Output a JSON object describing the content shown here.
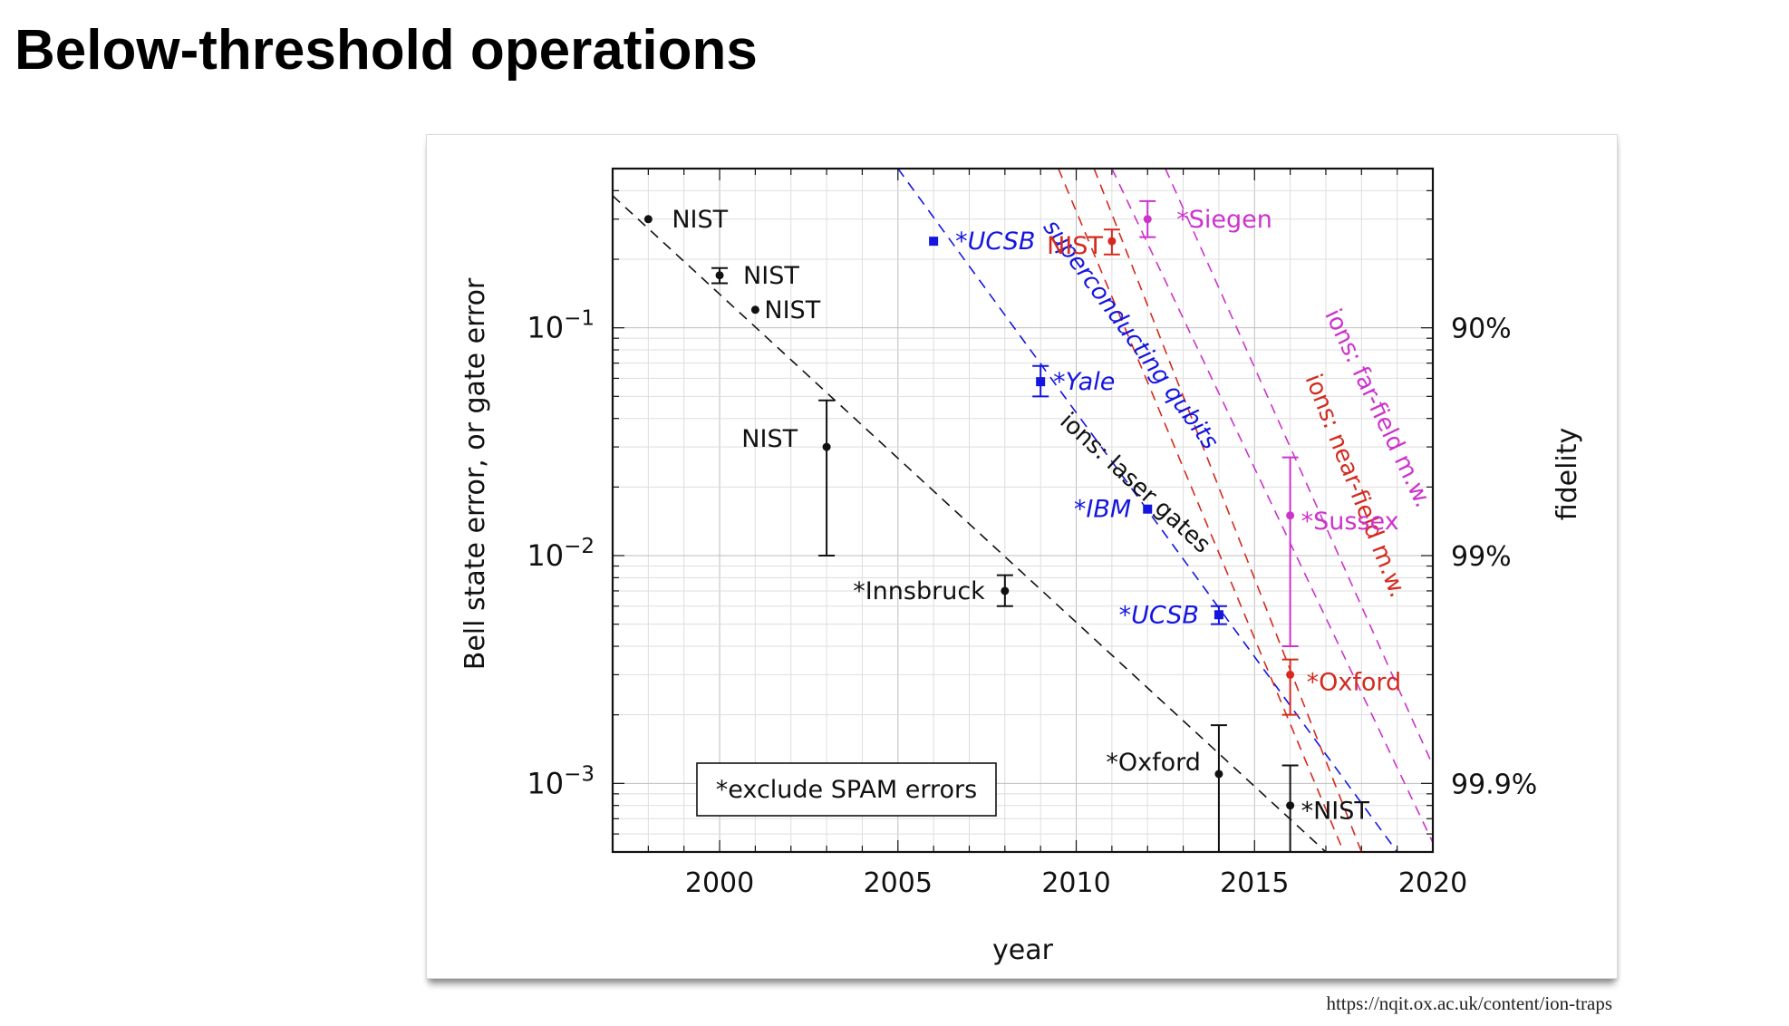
{
  "slide": {
    "title": "Below-threshold operations",
    "source": "https://nqit.ox.ac.uk/content/ion-traps"
  },
  "chart_data": {
    "type": "scatter",
    "title": "",
    "xlabel": "year",
    "ylabel": "Bell state error, or gate error",
    "y2label": "fidelity",
    "y_scale": "log",
    "xlim": [
      1997,
      2020
    ],
    "ylim": [
      0.0005,
      0.5
    ],
    "grid": true,
    "x_ticks": [
      "2000",
      "2005",
      "2010",
      "2015",
      "2020"
    ],
    "y_ticks": [
      {
        "value": 0.1,
        "base": "10",
        "exp": "−1"
      },
      {
        "value": 0.01,
        "base": "10",
        "exp": "−2"
      },
      {
        "value": 0.001,
        "base": "10",
        "exp": "−3"
      }
    ],
    "y2_ticks": [
      {
        "value": 0.1,
        "label": "90%"
      },
      {
        "value": 0.01,
        "label": "99%"
      },
      {
        "value": 0.001,
        "label": "99.9%"
      }
    ],
    "colors": {
      "black": "#111111",
      "blue": "#1515e0",
      "red": "#d42a1f",
      "magenta": "#cc33cc"
    },
    "series": [
      {
        "color": "black",
        "points": [
          {
            "x": 1998,
            "y": 0.3,
            "label": "NIST"
          },
          {
            "x": 2000,
            "y": 0.17,
            "err": [
              0.157,
              0.183
            ],
            "label": "NIST"
          },
          {
            "x": 2001,
            "y": 0.12,
            "label": "NIST"
          },
          {
            "x": 2003,
            "y": 0.03,
            "err": [
              0.01,
              0.048
            ],
            "label": "NIST"
          },
          {
            "x": 2008,
            "y": 0.007,
            "err": [
              0.006,
              0.0082
            ],
            "label": "*Innsbruck"
          },
          {
            "x": 2014,
            "y": 0.0011,
            "err": [
              0.0005,
              0.0018
            ],
            "label": "*Oxford"
          },
          {
            "x": 2016,
            "y": 0.0008,
            "err": [
              0.0005,
              0.0012
            ],
            "label": "*NIST"
          }
        ]
      },
      {
        "color": "blue",
        "points": [
          {
            "x": 2006,
            "y": 0.24,
            "label": "*UCSB"
          },
          {
            "x": 2009,
            "y": 0.058,
            "err": [
              0.05,
              0.068
            ],
            "label": "*Yale"
          },
          {
            "x": 2012,
            "y": 0.016,
            "label": "*IBM"
          },
          {
            "x": 2014,
            "y": 0.0055,
            "err": [
              0.005,
              0.006
            ],
            "label": "*UCSB"
          }
        ]
      },
      {
        "color": "red",
        "points": [
          {
            "x": 2011,
            "y": 0.24,
            "err": [
              0.21,
              0.27
            ],
            "label": "NIST"
          },
          {
            "x": 2016,
            "y": 0.003,
            "err": [
              0.002,
              0.0035
            ],
            "label": "*Oxford"
          }
        ]
      },
      {
        "color": "magenta",
        "points": [
          {
            "x": 2012,
            "y": 0.3,
            "err": [
              0.25,
              0.36
            ],
            "label": "*Siegen"
          },
          {
            "x": 2016,
            "y": 0.015,
            "err": [
              0.004,
              0.027
            ],
            "label": "*Sussex"
          }
        ]
      }
    ],
    "trend_lines": [
      {
        "label": "ions: laser gates",
        "color": "black",
        "from": [
          1997,
          0.38
        ],
        "to": [
          2017,
          0.0005
        ]
      },
      {
        "label": "superconducting qubits",
        "color": "blue",
        "from": [
          2005,
          0.5
        ],
        "to": [
          2019,
          0.0005
        ]
      },
      {
        "label": "ions: near-field m.w.",
        "color": "red",
        "from": [
          2010.5,
          0.5
        ],
        "to": [
          2018,
          0.0005
        ]
      },
      {
        "label": "ions: far-field m.w.",
        "color": "magenta",
        "from": [
          2011,
          0.5
        ],
        "to": [
          2020,
          0.00055
        ]
      },
      {
        "label": "",
        "color": "red",
        "from": [
          2009.5,
          0.5
        ],
        "to": [
          2017.5,
          0.0005
        ]
      },
      {
        "label": "",
        "color": "magenta",
        "from": [
          2012.5,
          0.5
        ],
        "to": [
          2020,
          0.0012
        ]
      }
    ],
    "annotation": "*exclude SPAM errors"
  }
}
